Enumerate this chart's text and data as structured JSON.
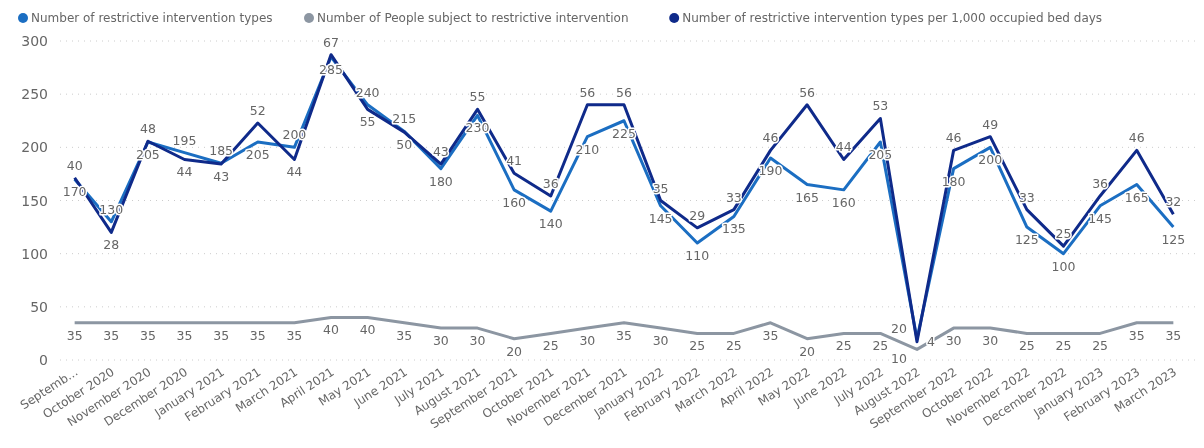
{
  "chart_data": {
    "type": "line",
    "categories": [
      "Septemb...",
      "October 2020",
      "November 2020",
      "December 2020",
      "January 2021",
      "February 2021",
      "March 2021",
      "April 2021",
      "May 2021",
      "June 2021",
      "July 2021",
      "August 2021",
      "September 2021",
      "October 2021",
      "November 2021",
      "December 2021",
      "January 2022",
      "February 2022",
      "March 2022",
      "April 2022",
      "May 2022",
      "June 2022",
      "July 2022",
      "August 2022",
      "September 2022",
      "October 2022",
      "November 2022",
      "December 2022",
      "January 2023",
      "February 2023",
      "March 2023"
    ],
    "series": [
      {
        "name": "Number of restrictive intervention types",
        "color": "#1b6ec2",
        "values": [
          170,
          130,
          205,
          195,
          185,
          205,
          200,
          285,
          240,
          215,
          180,
          230,
          160,
          140,
          210,
          225,
          145,
          110,
          135,
          190,
          165,
          160,
          205,
          20,
          180,
          200,
          125,
          100,
          145,
          165,
          125
        ]
      },
      {
        "name": "Number of People subject to restrictive intervention",
        "color": "#8c96a2",
        "values": [
          35,
          35,
          35,
          35,
          35,
          35,
          35,
          40,
          40,
          35,
          30,
          30,
          20,
          25,
          30,
          35,
          30,
          25,
          25,
          35,
          20,
          25,
          25,
          10,
          30,
          30,
          25,
          25,
          25,
          35,
          35
        ]
      },
      {
        "name": "Number of restrictive intervention types per 1,000 occupied bed days",
        "color": "#0f2a8a",
        "axis": "y2",
        "values": [
          40,
          28,
          48,
          44,
          43,
          52,
          44,
          67,
          55,
          50,
          43,
          55,
          41,
          36,
          56,
          56,
          35,
          29,
          33,
          46,
          56,
          44,
          53,
          4,
          46,
          49,
          33,
          25,
          36,
          46,
          32
        ]
      }
    ],
    "ylim": [
      0,
      300
    ],
    "yticks": [
      0,
      50,
      100,
      150,
      200,
      250,
      300
    ],
    "y2lim": [
      0,
      70
    ],
    "tick_labels": "xy",
    "grid": "y",
    "legend": "top left",
    "data_labels": true,
    "line_style": "solid"
  }
}
